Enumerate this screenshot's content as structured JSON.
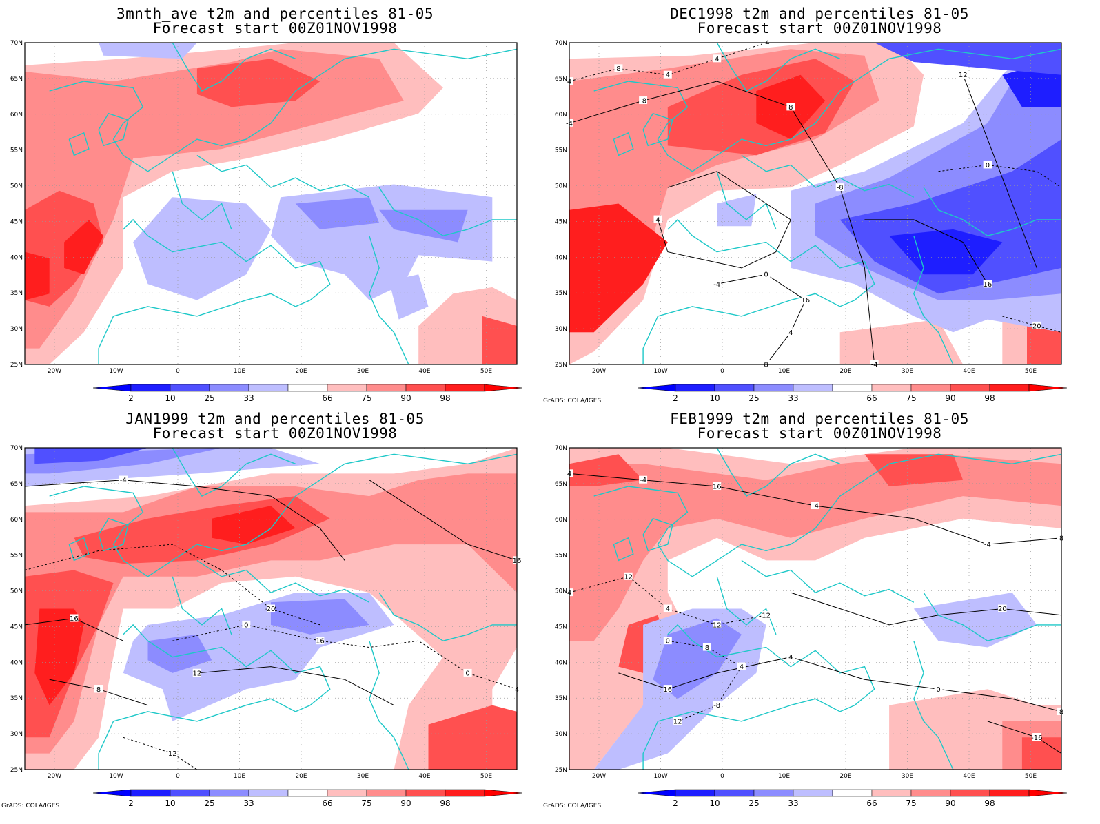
{
  "colors": {
    "p2": "#1e1eff",
    "p10": "#5050ff",
    "p25": "#8c8cff",
    "p33": "#bebeff",
    "p66": "#ffbebe",
    "p75": "#ff8c8c",
    "p90": "#ff5050",
    "p98": "#ff1e1e",
    "coast": "#1ec8c8",
    "contour": "#000000"
  },
  "colorbar": {
    "labels": [
      "2",
      "10",
      "25",
      "33",
      "66",
      "75",
      "90",
      "98"
    ]
  },
  "axes": {
    "lon_labels": [
      "20W",
      "10W",
      "0",
      "10E",
      "20E",
      "30E",
      "40E",
      "50E"
    ],
    "lat_labels": [
      "70N",
      "65N",
      "60N",
      "55N",
      "50N",
      "45N",
      "40N",
      "35N",
      "30N",
      "25N"
    ]
  },
  "footer_text": "GrADS: COLA/IGES",
  "panels": [
    {
      "id": "avg",
      "title": "3mnth_ave t2m and percentiles 81-05",
      "subtitle": "Forecast start 00Z01NOV1998",
      "has_footer": false,
      "has_contours": false,
      "contour_labels": []
    },
    {
      "id": "dec",
      "title": "DEC1998 t2m and percentiles 81-05",
      "subtitle": "Forecast start 00Z01NOV1998",
      "has_footer": true,
      "has_contours": true,
      "contour_labels": [
        "-8",
        "-4",
        "-8",
        "-4",
        "-8",
        "0",
        "4",
        "-4",
        "-8",
        "4",
        "0",
        "8",
        "12",
        "16",
        "0",
        "4",
        "-4",
        "4",
        "0",
        "4",
        "8",
        "12",
        "12",
        "4",
        "8",
        "8",
        "12",
        "16",
        "20",
        "12",
        "16",
        "20",
        "-4",
        "4",
        "4",
        "0",
        "0",
        "12"
      ]
    },
    {
      "id": "jan",
      "title": "JAN1999 t2m and percentiles 81-05",
      "subtitle": "Forecast start 00Z01NOV1998",
      "has_footer": true,
      "has_contours": true,
      "contour_labels": [
        "-12",
        "-8",
        "-4",
        "0",
        "4",
        "-4",
        "-8",
        "0",
        "-4",
        "4",
        "8",
        "12",
        "16",
        "8",
        "12",
        "4",
        "8",
        "0",
        "4",
        "4",
        "0",
        "8",
        "12",
        "8",
        "12",
        "-12",
        "4",
        "8",
        "0",
        "12",
        "16",
        "12",
        "-4",
        "20",
        "16"
      ]
    },
    {
      "id": "feb",
      "title": "FEB1999 t2m and percentiles 81-05",
      "subtitle": "Forecast start 00Z01NOV1998",
      "has_footer": true,
      "has_contours": true,
      "contour_labels": [
        "-4",
        "-4",
        "0",
        "-8",
        "-8",
        "-4",
        "-4",
        "4",
        "0",
        "4",
        "8",
        "12",
        "16",
        "4",
        "4",
        "12",
        "12",
        "8",
        "8",
        "12",
        "0",
        "4",
        "4",
        "8",
        "-4",
        "12",
        "8",
        "4",
        "0",
        "0",
        "4",
        "12",
        "16",
        "20",
        "-8",
        "-16"
      ]
    }
  ]
}
